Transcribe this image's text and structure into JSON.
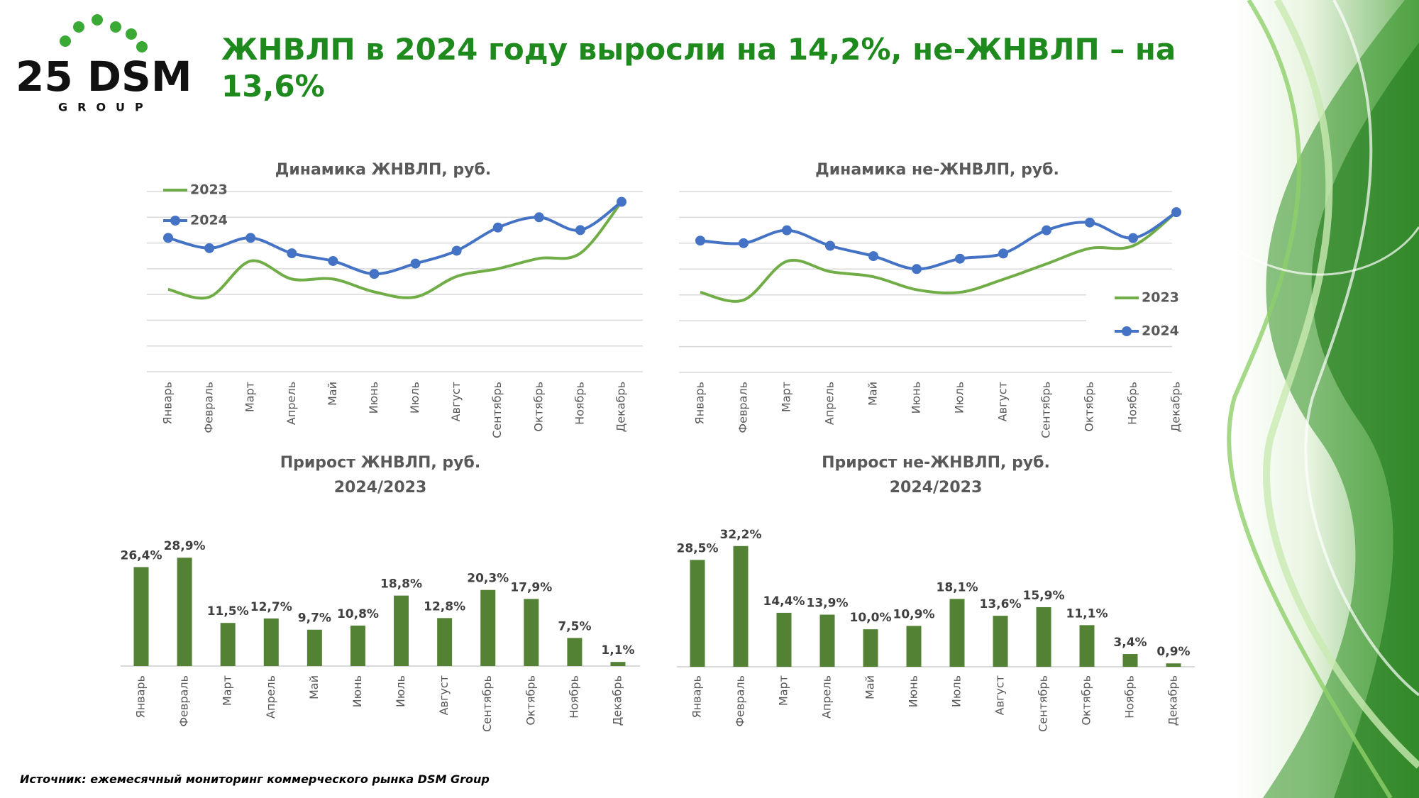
{
  "header": {
    "title": "ЖНВЛП в 2024 году выросли на 14,2%, не-ЖНВЛП – на 13,6%",
    "logo": "25 DSM",
    "logo_sub": "GROUP"
  },
  "footer": {
    "source": "Источник: ежемесячный мониторинг коммерческого рынка DSM Group"
  },
  "chart_data": [
    {
      "type": "line",
      "title": "Динамика ЖНВЛП, руб.",
      "categories": [
        "Январь",
        "Февраль",
        "Март",
        "Апрель",
        "Май",
        "Июнь",
        "Июль",
        "Август",
        "Сентябрь",
        "Октябрь",
        "Ноябрь",
        "Декабрь"
      ],
      "series": [
        {
          "name": "2023",
          "color": "#70ad47",
          "values": [
            3.2,
            2.9,
            4.3,
            3.6,
            3.6,
            3.1,
            2.9,
            3.7,
            4.0,
            4.4,
            4.6,
            6.6
          ]
        },
        {
          "name": "2024",
          "color": "#4472c4",
          "values": [
            5.2,
            4.8,
            5.2,
            4.6,
            4.3,
            3.8,
            4.2,
            4.7,
            5.6,
            6.0,
            5.5,
            6.6
          ]
        }
      ],
      "ylim": [
        0,
        7
      ],
      "yticks": [
        0,
        1,
        2,
        3,
        4,
        5,
        6,
        7
      ],
      "grid": true,
      "tick_labels": false,
      "legend": "top-left"
    },
    {
      "type": "line",
      "title": "Динамика не-ЖНВЛП, руб.",
      "categories": [
        "Январь",
        "Февраль",
        "Март",
        "Апрель",
        "Май",
        "Июнь",
        "Июль",
        "Август",
        "Сентябрь",
        "Октябрь",
        "Ноябрь",
        "Декабрь"
      ],
      "series": [
        {
          "name": "2023",
          "color": "#70ad47",
          "values": [
            3.1,
            2.8,
            4.3,
            3.9,
            3.7,
            3.2,
            3.1,
            3.6,
            4.2,
            4.8,
            4.9,
            6.2
          ]
        },
        {
          "name": "2024",
          "color": "#4472c4",
          "values": [
            5.1,
            5.0,
            5.5,
            4.9,
            4.5,
            4.0,
            4.4,
            4.6,
            5.5,
            5.8,
            5.2,
            6.2
          ]
        }
      ],
      "ylim": [
        0,
        7
      ],
      "yticks": [
        0,
        1,
        2,
        3,
        4,
        5,
        6,
        7
      ],
      "grid": true,
      "tick_labels": false,
      "legend": "right"
    },
    {
      "type": "bar",
      "title": "Прирост ЖНВЛП, руб.",
      "subtitle": "2024/2023",
      "color": "#548235",
      "categories": [
        "Январь",
        "Февраль",
        "Март",
        "Апрель",
        "Май",
        "Июнь",
        "Июль",
        "Август",
        "Сентябрь",
        "Октябрь",
        "Ноябрь",
        "Декабрь"
      ],
      "values": [
        26.4,
        28.9,
        11.5,
        12.7,
        9.7,
        10.8,
        18.8,
        12.8,
        20.3,
        17.9,
        7.5,
        1.1
      ],
      "value_labels": [
        "26,4%",
        "28,9%",
        "11,5%",
        "12,7%",
        "9,7%",
        "10,8%",
        "18,8%",
        "12,8%",
        "20,3%",
        "17,9%",
        "7,5%",
        "1,1%"
      ],
      "ylim": [
        0,
        35
      ]
    },
    {
      "type": "bar",
      "title": "Прирост не-ЖНВЛП, руб.",
      "subtitle": "2024/2023",
      "color": "#548235",
      "categories": [
        "Январь",
        "Февраль",
        "Март",
        "Апрель",
        "Май",
        "Июнь",
        "Июль",
        "Август",
        "Сентябрь",
        "Октябрь",
        "Ноябрь",
        "Декабрь"
      ],
      "values": [
        28.5,
        32.2,
        14.4,
        13.9,
        10.0,
        10.9,
        18.1,
        13.6,
        15.9,
        11.1,
        3.4,
        0.9
      ],
      "value_labels": [
        "28,5%",
        "32,2%",
        "14,4%",
        "13,9%",
        "10,0%",
        "10,9%",
        "18,1%",
        "13,6%",
        "15,9%",
        "11,1%",
        "3,4%",
        "0,9%"
      ],
      "ylim": [
        0,
        35
      ]
    }
  ]
}
